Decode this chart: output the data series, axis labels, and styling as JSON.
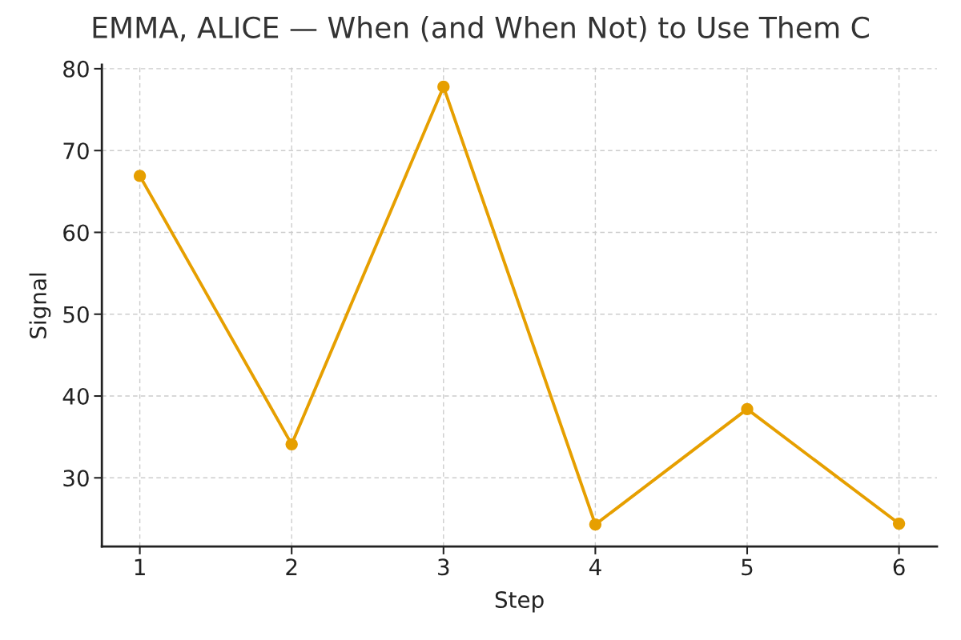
{
  "chart_data": {
    "type": "line",
    "title": "EMMA, ALICE — When (and When Not) to Use Them C",
    "xlabel": "Step",
    "ylabel": "Signal",
    "x": [
      1,
      2,
      3,
      4,
      5,
      6
    ],
    "series": [
      {
        "color": "#e69f00",
        "values": [
          66.9,
          34.1,
          77.8,
          24.3,
          38.4,
          24.4
        ]
      }
    ],
    "xlim": [
      0.75,
      6.25
    ],
    "ylim": [
      21.6,
      80.5
    ],
    "xticks": [
      1,
      2,
      3,
      4,
      5,
      6
    ],
    "yticks": [
      30,
      40,
      50,
      60,
      70,
      80
    ],
    "grid": true,
    "marker": "circle",
    "line_style": "solid"
  }
}
